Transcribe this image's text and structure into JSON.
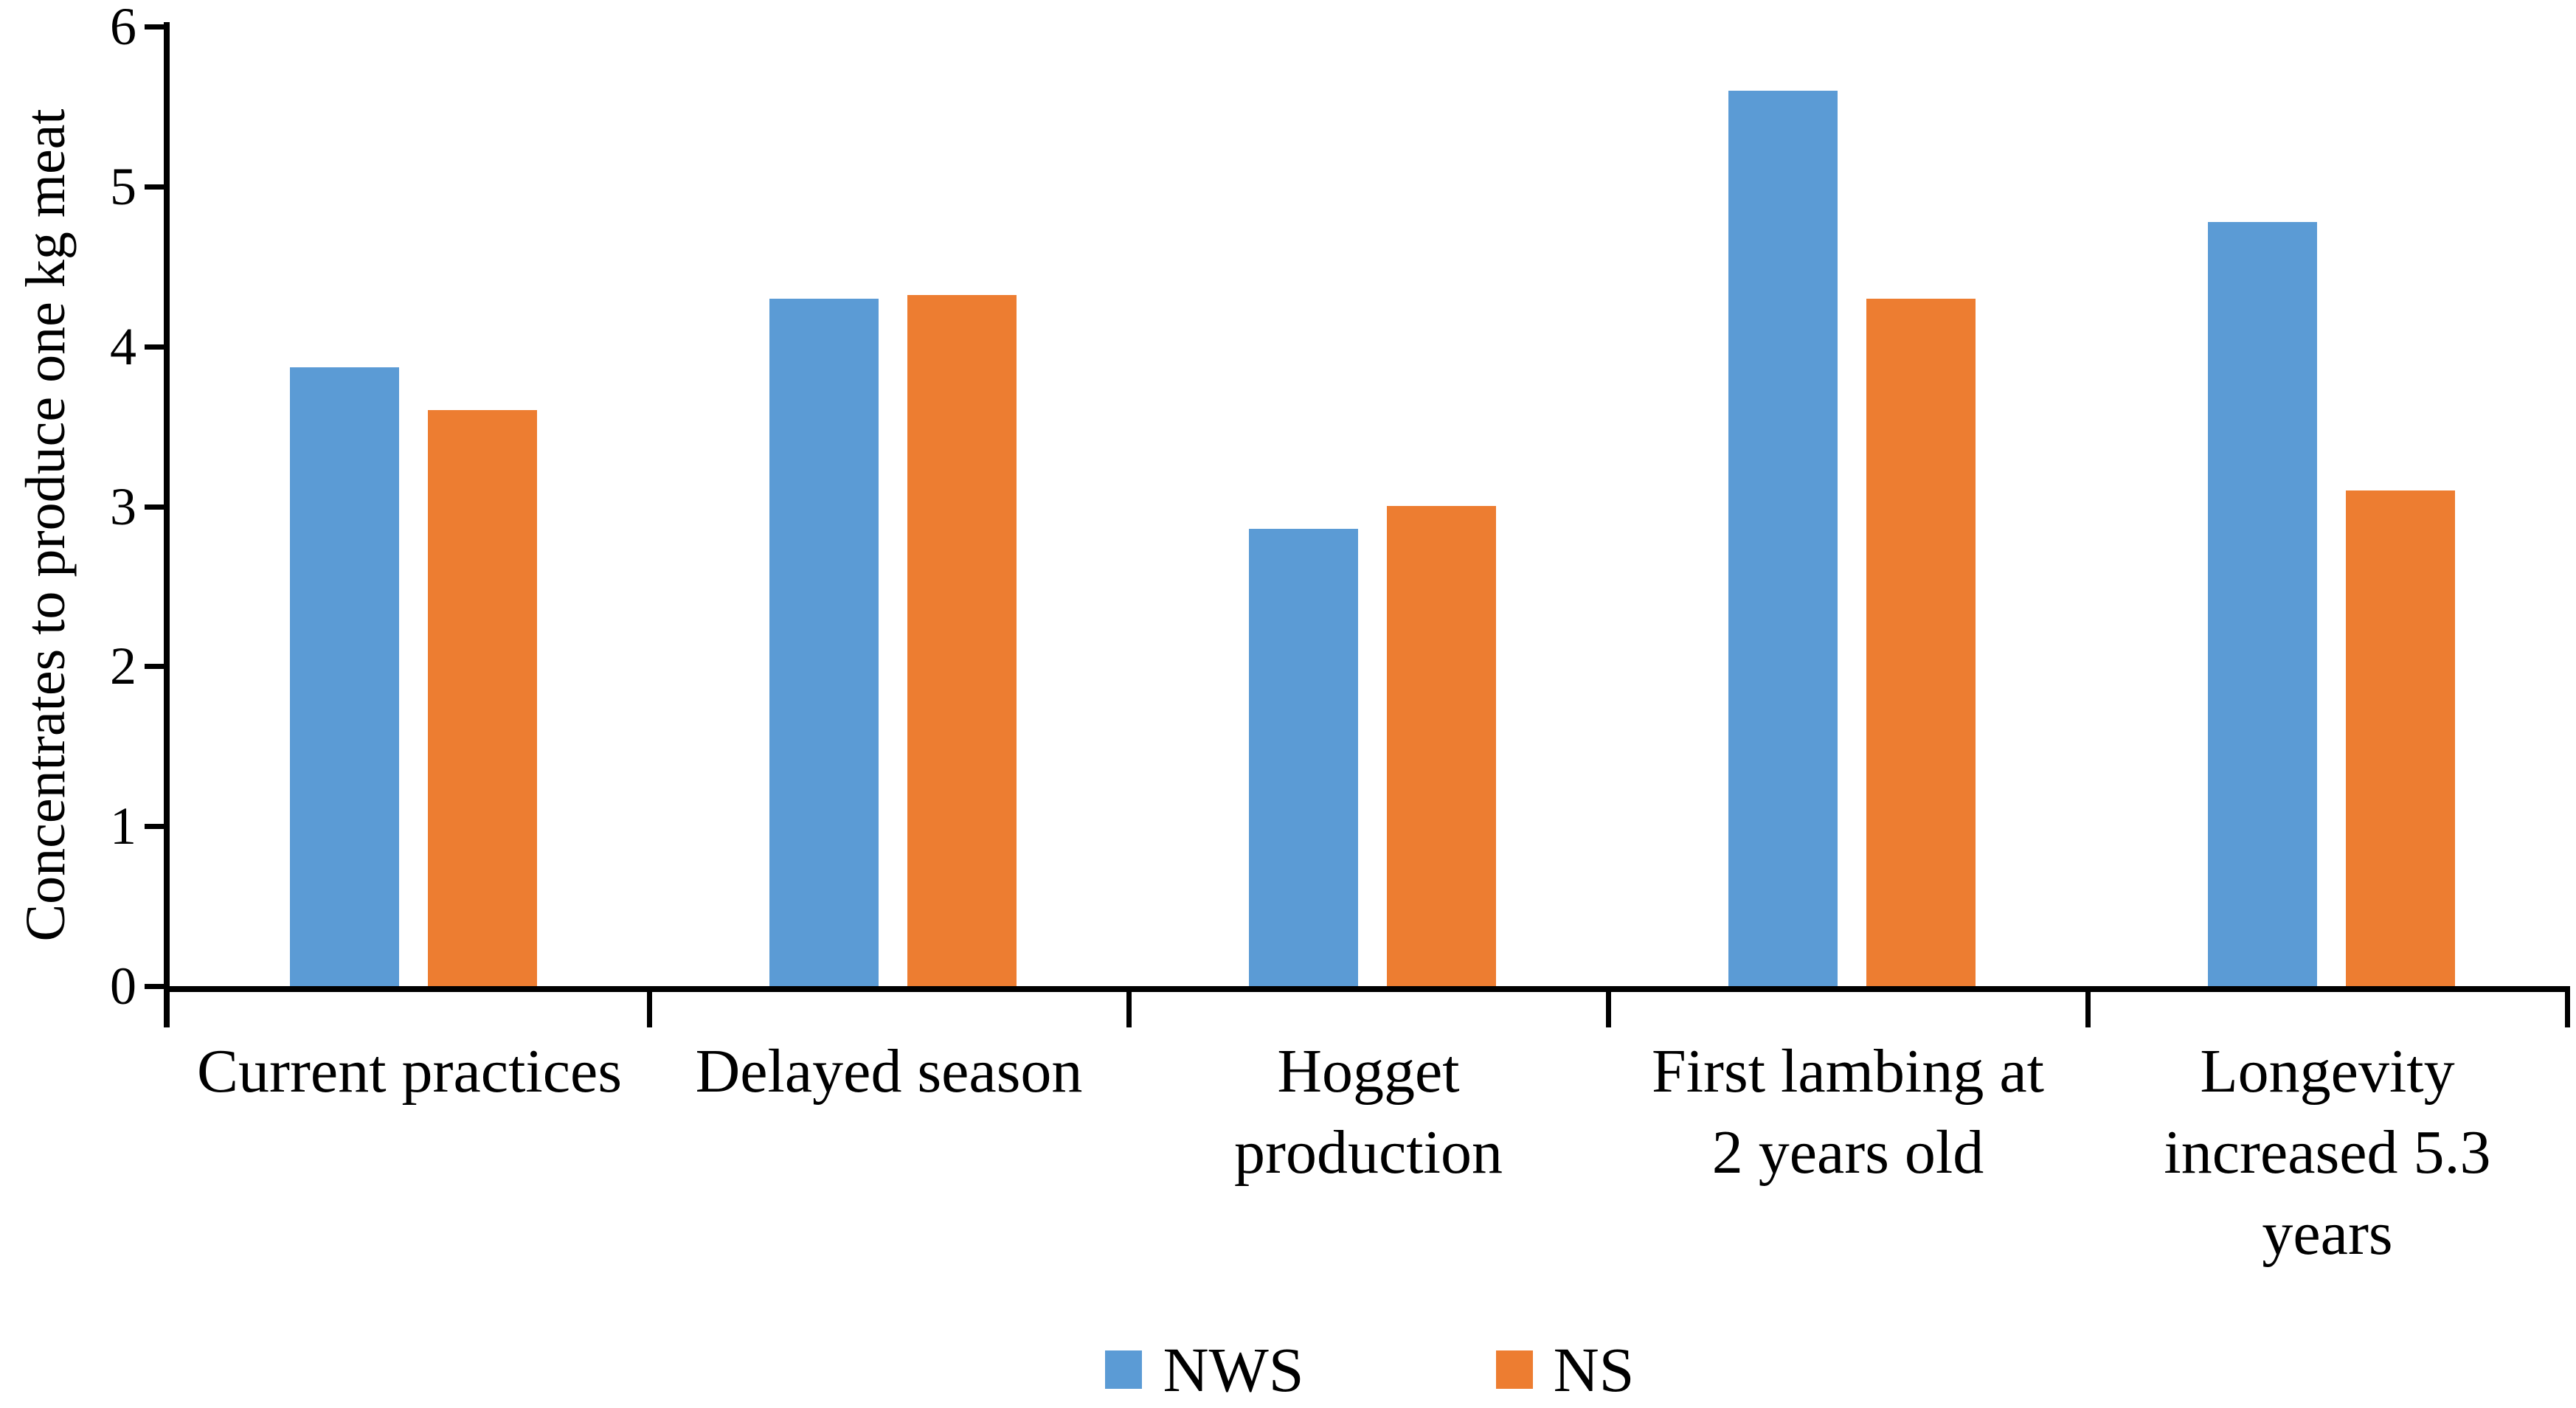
{
  "chart_data": {
    "type": "bar",
    "title": "",
    "xlabel": "",
    "ylabel": "Concentrates to produce one kg meat",
    "ylim": [
      0,
      6
    ],
    "yticks": [
      "0",
      "1",
      "2",
      "3",
      "4",
      "5",
      "6"
    ],
    "grid": false,
    "legend_position": "bottom-center",
    "categories": [
      "Current practices",
      "Delayed season",
      "Hogget production",
      "First lambing at 2 years old",
      "Longevity increased 5.3 years"
    ],
    "category_label_lines": [
      [
        "Current practices"
      ],
      [
        "Delayed season"
      ],
      [
        "Hogget",
        "production"
      ],
      [
        "First lambing at",
        "2 years old"
      ],
      [
        "Longevity",
        "increased 5.3",
        "years"
      ]
    ],
    "series": [
      {
        "name": "NWS",
        "color": "#5B9BD5",
        "values": [
          3.87,
          4.3,
          2.86,
          5.6,
          4.78
        ]
      },
      {
        "name": "NS",
        "color": "#ED7D31",
        "values": [
          3.6,
          4.32,
          3.0,
          4.3,
          3.1
        ]
      }
    ],
    "colors": {
      "axis": "#000000",
      "text": "#000000",
      "background": "#FFFFFF"
    }
  }
}
